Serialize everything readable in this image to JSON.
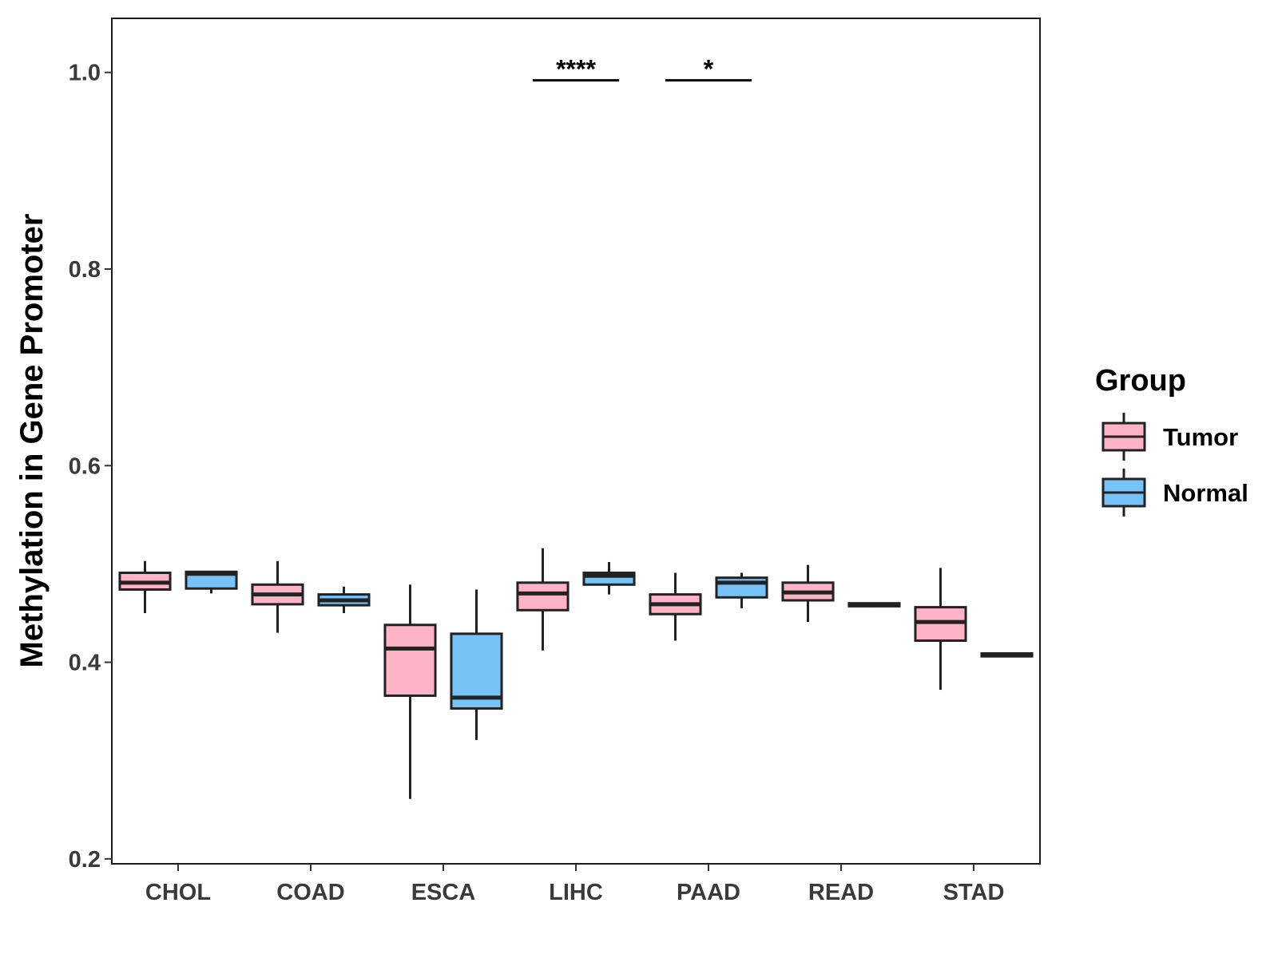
{
  "chart_data": {
    "type": "boxplot",
    "title": "",
    "xlabel": "",
    "ylabel": "Methylation in Gene Promoter",
    "ylim": [
      0.195,
      1.055
    ],
    "yticks": [
      "0.2",
      "0.4",
      "0.6",
      "0.8",
      "1.0"
    ],
    "categories": [
      "CHOL",
      "COAD",
      "ESCA",
      "LIHC",
      "PAAD",
      "READ",
      "STAD"
    ],
    "legend": {
      "title": "Group",
      "position": "right"
    },
    "series": [
      {
        "name": "Tumor",
        "color": "#FFB3C6",
        "boxes": [
          {
            "min": 0.45,
            "q1": 0.474,
            "median": 0.481,
            "q3": 0.491,
            "max": 0.503
          },
          {
            "min": 0.43,
            "q1": 0.459,
            "median": 0.469,
            "q3": 0.479,
            "max": 0.503
          },
          {
            "min": 0.261,
            "q1": 0.366,
            "median": 0.414,
            "q3": 0.438,
            "max": 0.479
          },
          {
            "min": 0.412,
            "q1": 0.453,
            "median": 0.47,
            "q3": 0.481,
            "max": 0.516
          },
          {
            "min": 0.422,
            "q1": 0.449,
            "median": 0.459,
            "q3": 0.469,
            "max": 0.491
          },
          {
            "min": 0.441,
            "q1": 0.463,
            "median": 0.471,
            "q3": 0.481,
            "max": 0.499
          },
          {
            "min": 0.372,
            "q1": 0.422,
            "median": 0.441,
            "q3": 0.456,
            "max": 0.496
          }
        ]
      },
      {
        "name": "Normal",
        "color": "#77C3F8",
        "boxes": [
          {
            "min": 0.47,
            "q1": 0.475,
            "median": 0.49,
            "q3": 0.492,
            "max": 0.493
          },
          {
            "min": 0.45,
            "q1": 0.458,
            "median": 0.463,
            "q3": 0.469,
            "max": 0.477
          },
          {
            "min": 0.321,
            "q1": 0.353,
            "median": 0.364,
            "q3": 0.429,
            "max": 0.474
          },
          {
            "min": 0.469,
            "q1": 0.479,
            "median": 0.488,
            "q3": 0.491,
            "max": 0.502
          },
          {
            "min": 0.455,
            "q1": 0.466,
            "median": 0.481,
            "q3": 0.486,
            "max": 0.491
          },
          {
            "min": 0.456,
            "q1": 0.457,
            "median": 0.458,
            "q3": 0.46,
            "max": 0.461
          },
          {
            "min": 0.405,
            "q1": 0.406,
            "median": 0.408,
            "q3": 0.409,
            "max": 0.41
          }
        ]
      }
    ],
    "annotations": [
      {
        "category": "LIHC",
        "label": "****",
        "y": 0.992
      },
      {
        "category": "PAAD",
        "label": "*",
        "y": 0.992
      }
    ]
  }
}
